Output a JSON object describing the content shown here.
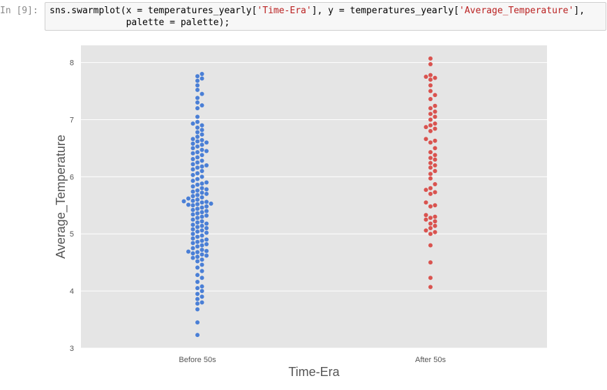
{
  "cell": {
    "prompt": "In [9]:",
    "code": {
      "line1_pre": "sns.swarmplot(x = temperatures_yearly[",
      "line1_str1": "'Time-Era'",
      "line1_mid": "], y = temperatures_yearly[",
      "line1_str2": "'Average_Temperature'",
      "line1_post": "],",
      "line2": "              palette = palette);"
    }
  },
  "chart_data": {
    "type": "scatter",
    "subtype": "swarm",
    "title": "",
    "xlabel": "Time-Era",
    "ylabel": "Average_Temperature",
    "categories": [
      "Before 50s",
      "After 50s"
    ],
    "ylim": [
      3,
      8.3
    ],
    "yticks": [
      3,
      4,
      5,
      6,
      7,
      8
    ],
    "grid": true,
    "background_color": "#e5e5e5",
    "series": [
      {
        "color": "#4a7fd6",
        "values": [
          3.23,
          3.45,
          3.68,
          3.78,
          3.8,
          3.86,
          3.9,
          3.95,
          4.0,
          4.05,
          4.08,
          4.16,
          4.23,
          4.28,
          4.35,
          4.41,
          4.46,
          4.52,
          4.55,
          4.58,
          4.6,
          4.62,
          4.64,
          4.66,
          4.68,
          4.69,
          4.7,
          4.72,
          4.75,
          4.78,
          4.8,
          4.82,
          4.84,
          4.86,
          4.88,
          4.9,
          4.92,
          4.95,
          4.97,
          5.0,
          5.02,
          5.04,
          5.06,
          5.08,
          5.1,
          5.12,
          5.14,
          5.16,
          5.18,
          5.2,
          5.22,
          5.25,
          5.28,
          5.3,
          5.32,
          5.34,
          5.36,
          5.38,
          5.4,
          5.42,
          5.44,
          5.46,
          5.48,
          5.5,
          5.51,
          5.52,
          5.53,
          5.55,
          5.56,
          5.57,
          5.58,
          5.6,
          5.62,
          5.64,
          5.66,
          5.68,
          5.7,
          5.72,
          5.74,
          5.76,
          5.78,
          5.8,
          5.83,
          5.86,
          5.88,
          5.9,
          5.93,
          5.96,
          6.0,
          6.03,
          6.06,
          6.1,
          6.13,
          6.16,
          6.18,
          6.2,
          6.22,
          6.25,
          6.28,
          6.31,
          6.34,
          6.38,
          6.41,
          6.43,
          6.45,
          6.47,
          6.5,
          6.53,
          6.56,
          6.58,
          6.6,
          6.62,
          6.64,
          6.66,
          6.7,
          6.74,
          6.78,
          6.82,
          6.86,
          6.9,
          6.93,
          6.96,
          7.05,
          7.2,
          7.25,
          7.3,
          7.38,
          7.45,
          7.52,
          7.6,
          7.68,
          7.72,
          7.76,
          7.8
        ]
      },
      {
        "color": "#d9534f",
        "values": [
          4.07,
          4.23,
          4.5,
          4.8,
          5.0,
          5.03,
          5.06,
          5.1,
          5.14,
          5.18,
          5.22,
          5.25,
          5.28,
          5.3,
          5.33,
          5.48,
          5.5,
          5.55,
          5.7,
          5.73,
          5.77,
          5.8,
          5.87,
          5.97,
          6.05,
          6.1,
          6.16,
          6.2,
          6.24,
          6.3,
          6.33,
          6.38,
          6.43,
          6.5,
          6.6,
          6.63,
          6.66,
          6.8,
          6.84,
          6.87,
          6.9,
          6.93,
          7.0,
          7.05,
          7.1,
          7.14,
          7.2,
          7.24,
          7.36,
          7.43,
          7.5,
          7.6,
          7.7,
          7.73,
          7.75,
          7.78,
          7.97,
          8.07
        ]
      }
    ]
  }
}
